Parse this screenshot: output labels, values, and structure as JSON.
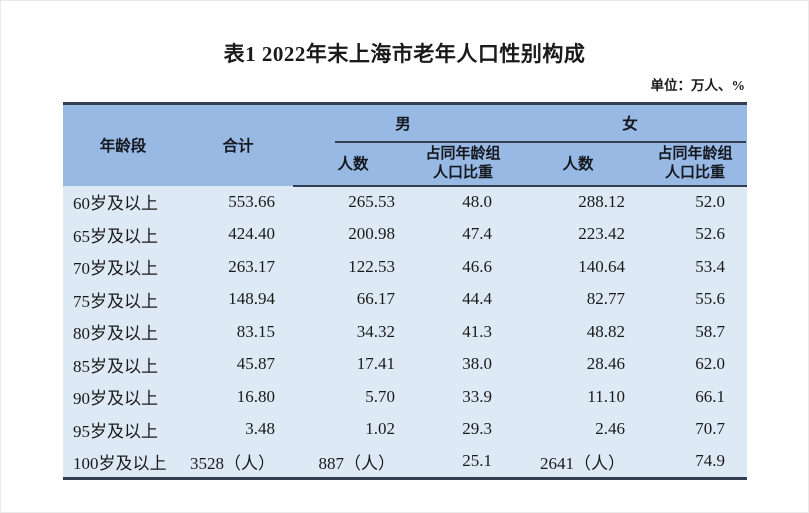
{
  "page": {
    "title": "表1  2022年末上海市老年人口性别构成",
    "unit_note": "单位：万人、%"
  },
  "colors": {
    "header_bg": "#97b9e4",
    "body_bg": "#ddeaf6",
    "rule": "#333f50",
    "text": "#1a1a1a"
  },
  "table": {
    "headers": {
      "age_group": "年龄段",
      "total": "合计",
      "male": "男",
      "female": "女",
      "count": "人数",
      "share_line1": "占同年龄组",
      "share_line2": "人口比重"
    },
    "rows": [
      {
        "age": "60岁及以上",
        "total": "553.66",
        "male_count": "265.53",
        "male_share": "48.0",
        "female_count": "288.12",
        "female_share": "52.0"
      },
      {
        "age": "65岁及以上",
        "total": "424.40",
        "male_count": "200.98",
        "male_share": "47.4",
        "female_count": "223.42",
        "female_share": "52.6"
      },
      {
        "age": "70岁及以上",
        "total": "263.17",
        "male_count": "122.53",
        "male_share": "46.6",
        "female_count": "140.64",
        "female_share": "53.4"
      },
      {
        "age": "75岁及以上",
        "total": "148.94",
        "male_count": "66.17",
        "male_share": "44.4",
        "female_count": "82.77",
        "female_share": "55.6"
      },
      {
        "age": "80岁及以上",
        "total": "83.15",
        "male_count": "34.32",
        "male_share": "41.3",
        "female_count": "48.82",
        "female_share": "58.7"
      },
      {
        "age": "85岁及以上",
        "total": "45.87",
        "male_count": "17.41",
        "male_share": "38.0",
        "female_count": "28.46",
        "female_share": "62.0"
      },
      {
        "age": "90岁及以上",
        "total": "16.80",
        "male_count": "5.70",
        "male_share": "33.9",
        "female_count": "11.10",
        "female_share": "66.1"
      },
      {
        "age": "95岁及以上",
        "total": "3.48",
        "male_count": "1.02",
        "male_share": "29.3",
        "female_count": "2.46",
        "female_share": "70.7"
      },
      {
        "age": "100岁及以上",
        "total": "3528（人）",
        "male_count": "887（人）",
        "male_share": "25.1",
        "female_count": "2641（人）",
        "female_share": "74.9"
      }
    ]
  }
}
